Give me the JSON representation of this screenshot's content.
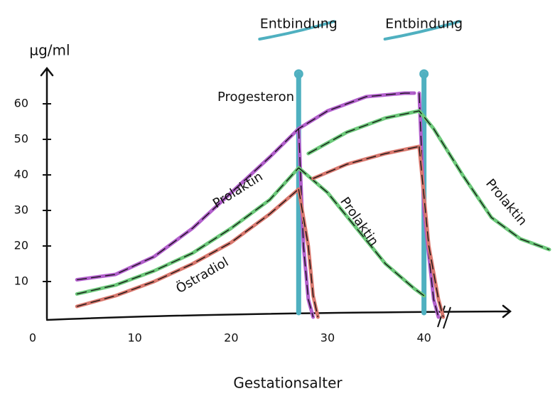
{
  "chart_data": {
    "type": "line",
    "x_label": "Gestationsalter",
    "y_label": "µg/ml",
    "xlim": [
      0,
      53
    ],
    "ylim": [
      0,
      70
    ],
    "xticks": [
      0,
      10,
      20,
      30,
      40
    ],
    "yticks": [
      10,
      20,
      30,
      40,
      50,
      60
    ],
    "grid": false,
    "series": [
      {
        "name": "Progesteron",
        "color": "#b25fcc",
        "x": [
          4,
          8,
          12,
          16,
          20,
          24,
          27,
          30,
          34,
          38,
          39,
          39,
          27,
          27.5,
          28,
          28.5,
          28.5,
          39.5,
          40,
          41,
          41.5
        ],
        "values": [
          10.5,
          12,
          17,
          25,
          35,
          45,
          53,
          58,
          62,
          63,
          63,
          null,
          53,
          20,
          5,
          0,
          null,
          63,
          30,
          5,
          0
        ]
      },
      {
        "name": "Prolaktin",
        "color": "#6cc97a",
        "x": [
          4,
          8,
          12,
          16,
          20,
          24,
          27,
          27,
          27,
          30,
          33,
          36,
          39,
          40,
          40,
          28,
          32,
          36,
          39.5,
          41,
          44,
          47,
          50,
          53
        ],
        "values": [
          6.5,
          9,
          13,
          18,
          25,
          33,
          42,
          null,
          42,
          35,
          25,
          15,
          8,
          6,
          null,
          46,
          52,
          56,
          58,
          53,
          40,
          28,
          22,
          19
        ]
      },
      {
        "name": "Östradiol",
        "color": "#d9786e",
        "x": [
          4,
          8,
          12,
          16,
          20,
          24,
          27,
          27,
          27,
          28,
          28.5,
          29,
          29,
          28.5,
          32,
          36,
          39.5,
          39.5,
          39.5,
          40.5,
          41.5,
          42
        ],
        "values": [
          3,
          6,
          10,
          15,
          21,
          29,
          36,
          null,
          36,
          20,
          6,
          0,
          null,
          39,
          43,
          46,
          48,
          null,
          48,
          20,
          5,
          0
        ]
      }
    ],
    "deliveries": [
      {
        "x": 27,
        "label": "Entbindung"
      },
      {
        "x": 40,
        "label": "Entbindung"
      }
    ],
    "delivery_color": "#4fb0c0",
    "annotations": [
      "Prolaktin",
      "Prolaktin"
    ]
  }
}
